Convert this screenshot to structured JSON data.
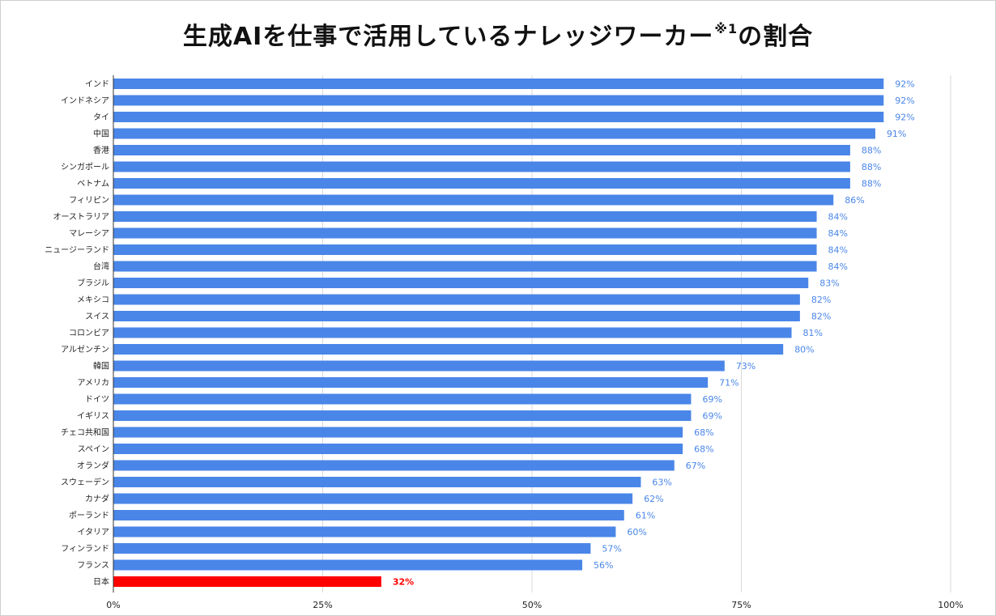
{
  "title": {
    "main": "生成AIを仕事で活用しているナレッジワーカー",
    "superscript": "※1",
    "suffix": "の割合"
  },
  "colors": {
    "bar": "#4a86e8",
    "highlight": "#ff0000",
    "grid": "#d9d9d9",
    "axis": "#333333"
  },
  "chart_data": {
    "type": "bar",
    "orientation": "horizontal",
    "categories": [
      "インド",
      "インドネシア",
      "タイ",
      "中国",
      "香港",
      "シンガポール",
      "ベトナム",
      "フィリピン",
      "オーストラリア",
      "マレーシア",
      "ニュージーランド",
      "台湾",
      "ブラジル",
      "メキシコ",
      "スイス",
      "コロンビア",
      "アルゼンチン",
      "韓国",
      "アメリカ",
      "ドイツ",
      "イギリス",
      "チェコ共和国",
      "スペイン",
      "オランダ",
      "スウェーデン",
      "カナダ",
      "ポーランド",
      "イタリア",
      "フィンランド",
      "フランス",
      "日本"
    ],
    "values": [
      92,
      92,
      92,
      91,
      88,
      88,
      88,
      86,
      84,
      84,
      84,
      84,
      83,
      82,
      82,
      81,
      80,
      73,
      71,
      69,
      69,
      68,
      68,
      67,
      63,
      62,
      61,
      60,
      57,
      56,
      32
    ],
    "value_labels": [
      "92%",
      "92%",
      "92%",
      "91%",
      "88%",
      "88%",
      "88%",
      "86%",
      "84%",
      "84%",
      "84%",
      "84%",
      "83%",
      "82%",
      "82%",
      "81%",
      "80%",
      "73%",
      "71%",
      "69%",
      "69%",
      "68%",
      "68%",
      "67%",
      "63%",
      "62%",
      "61%",
      "60%",
      "57%",
      "56%",
      "32%"
    ],
    "highlight_category": "日本",
    "xlim": [
      0,
      100
    ],
    "xticks": [
      0,
      25,
      50,
      75,
      100
    ],
    "xtick_labels": [
      "0%",
      "25%",
      "50%",
      "75%",
      "100%"
    ],
    "grid": true,
    "legend": "none"
  }
}
